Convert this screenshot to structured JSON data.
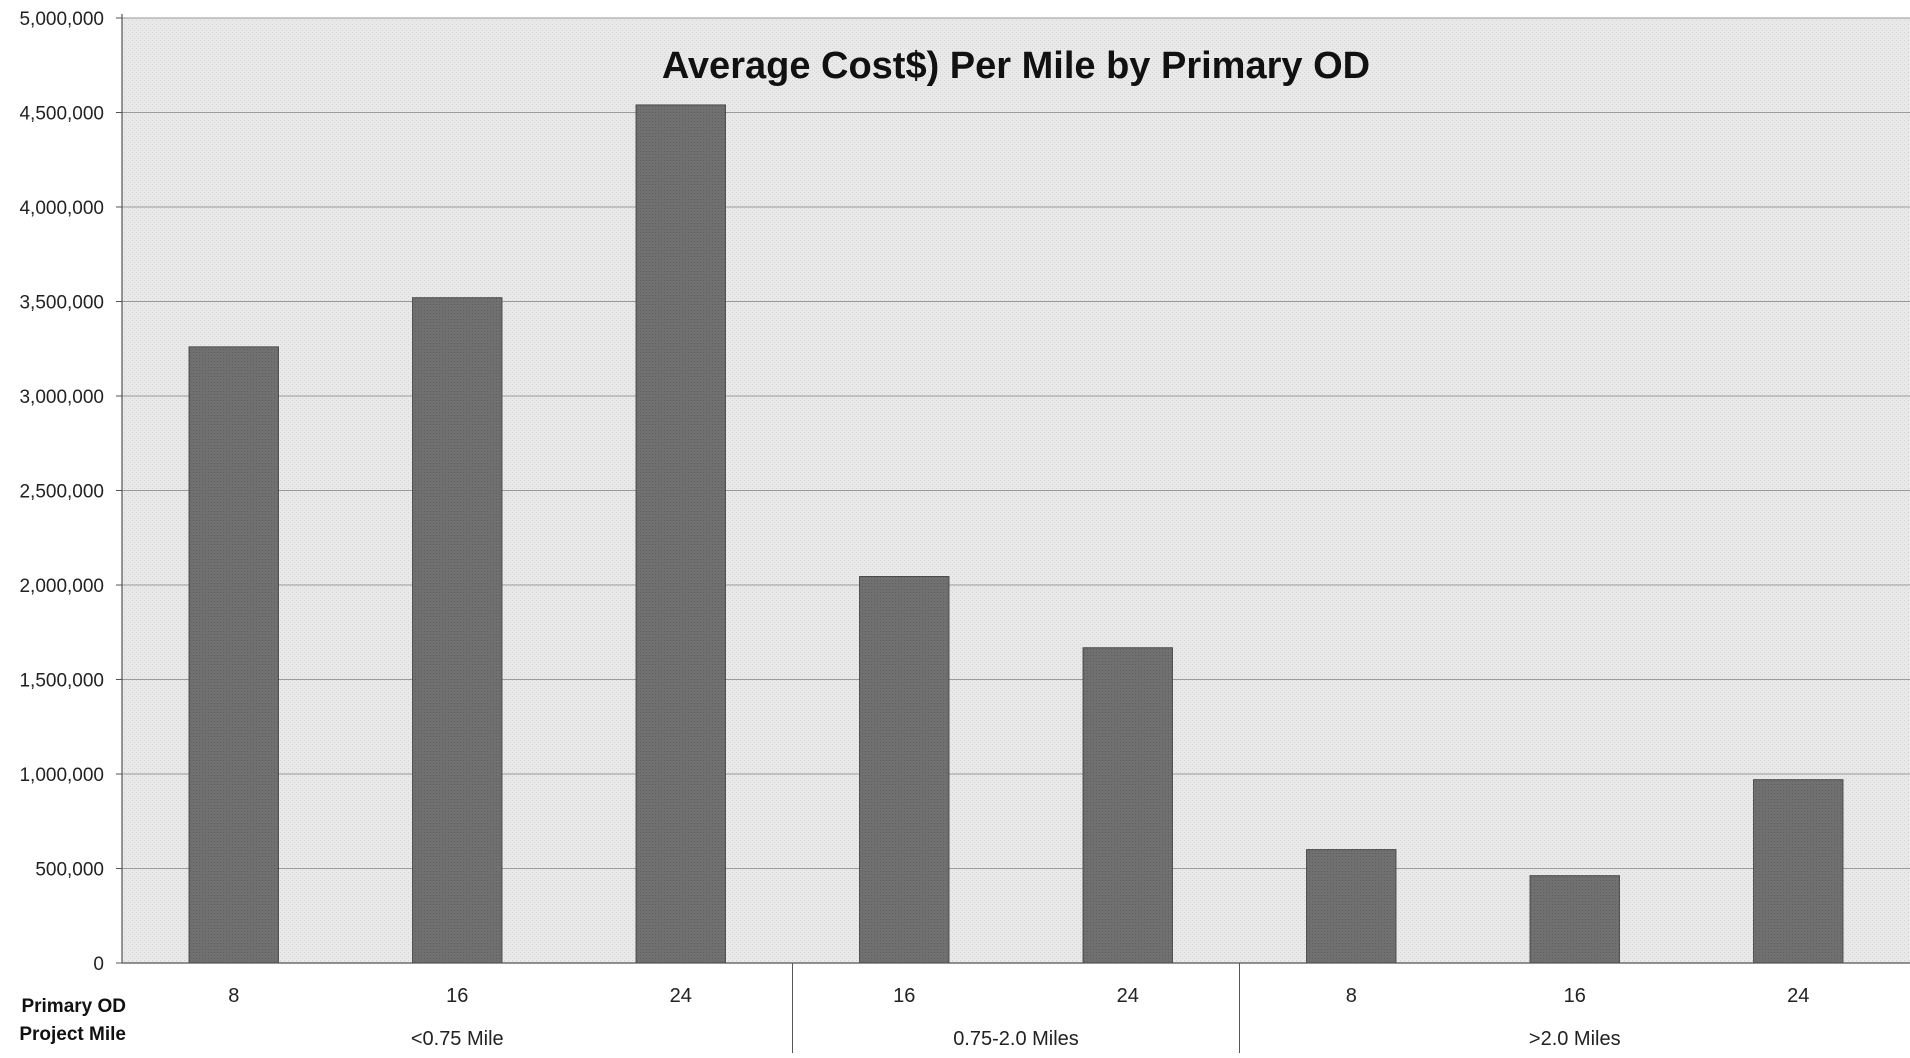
{
  "chart_data": {
    "type": "bar",
    "title": "Average Cost$) Per Mile by Primary OD",
    "row_labels": [
      "Primary OD",
      "Project Mile"
    ],
    "groups": [
      {
        "label": "<0.75 Mile",
        "categories": [
          "8",
          "16",
          "24"
        ],
        "values": [
          3260000,
          3520000,
          4540000
        ]
      },
      {
        "label": "0.75-2.0 Miles",
        "categories": [
          "16",
          "24"
        ],
        "values": [
          2045000,
          1668000
        ]
      },
      {
        "label": ">2.0 Miles",
        "categories": [
          "8",
          "16",
          "24"
        ],
        "values": [
          600000,
          462000,
          970000
        ]
      }
    ],
    "ylim": [
      0,
      5000000
    ],
    "yticks": [
      "0",
      "500,000",
      "1,000,000",
      "1,500,000",
      "2,000,000",
      "2,500,000",
      "3,000,000",
      "3,500,000",
      "4,000,000",
      "4,500,000",
      "5,000,000"
    ],
    "ytick_values": [
      0,
      500000,
      1000000,
      1500000,
      2000000,
      2500000,
      3000000,
      3500000,
      4000000,
      4500000,
      5000000
    ],
    "grid": true,
    "legend": "none",
    "colors": {
      "bar": "#6e6e6e",
      "bar_edge": "#4a4a4a",
      "plot_bg": "#e6e6e6",
      "grid": "#9a9a9a",
      "axis": "#555555"
    }
  }
}
